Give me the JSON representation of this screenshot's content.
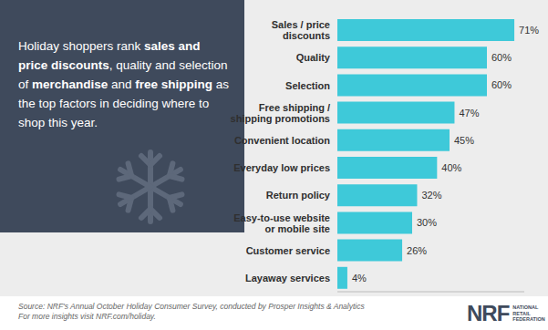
{
  "chart_data": {
    "type": "bar",
    "orientation": "horizontal",
    "categories": [
      "Sales / price discounts",
      "Quality",
      "Selection",
      "Free shipping / shipping promotions",
      "Convenient location",
      "Everyday low prices",
      "Return policy",
      "Easy-to-use website or mobile site",
      "Customer service",
      "Layaway services"
    ],
    "values": [
      71,
      60,
      60,
      47,
      45,
      40,
      32,
      30,
      26,
      4
    ],
    "value_labels": [
      "71%",
      "60%",
      "60%",
      "47%",
      "45%",
      "40%",
      "32%",
      "30%",
      "26%",
      "4%"
    ],
    "color": "#3ec9d9",
    "xlim": [
      0,
      75
    ],
    "data_labels": true,
    "tick_labels": "y",
    "grid": false
  },
  "panel": {
    "text": [
      {
        "text": "Holiday shoppers rank ",
        "bold": false
      },
      {
        "text": "sales and price discounts",
        "bold": true
      },
      {
        "text": ", quality and selection of ",
        "bold": false
      },
      {
        "text": "merchandise",
        "bold": true
      },
      {
        "text": " and ",
        "bold": false
      },
      {
        "text": "free shipping",
        "bold": true
      },
      {
        "text": " as the top factors in deciding where to shop this year.",
        "bold": false
      }
    ]
  },
  "footer": {
    "lines": [
      "Source: NRF's Annual October Holiday Consumer Survey, conducted by Prosper Insights & Analytics",
      "For more insights visit NRF.com/holiday."
    ]
  },
  "logo": {
    "mark": "NRF",
    "name": [
      "NATIONAL",
      "RETAIL",
      "FEDERATION"
    ]
  }
}
